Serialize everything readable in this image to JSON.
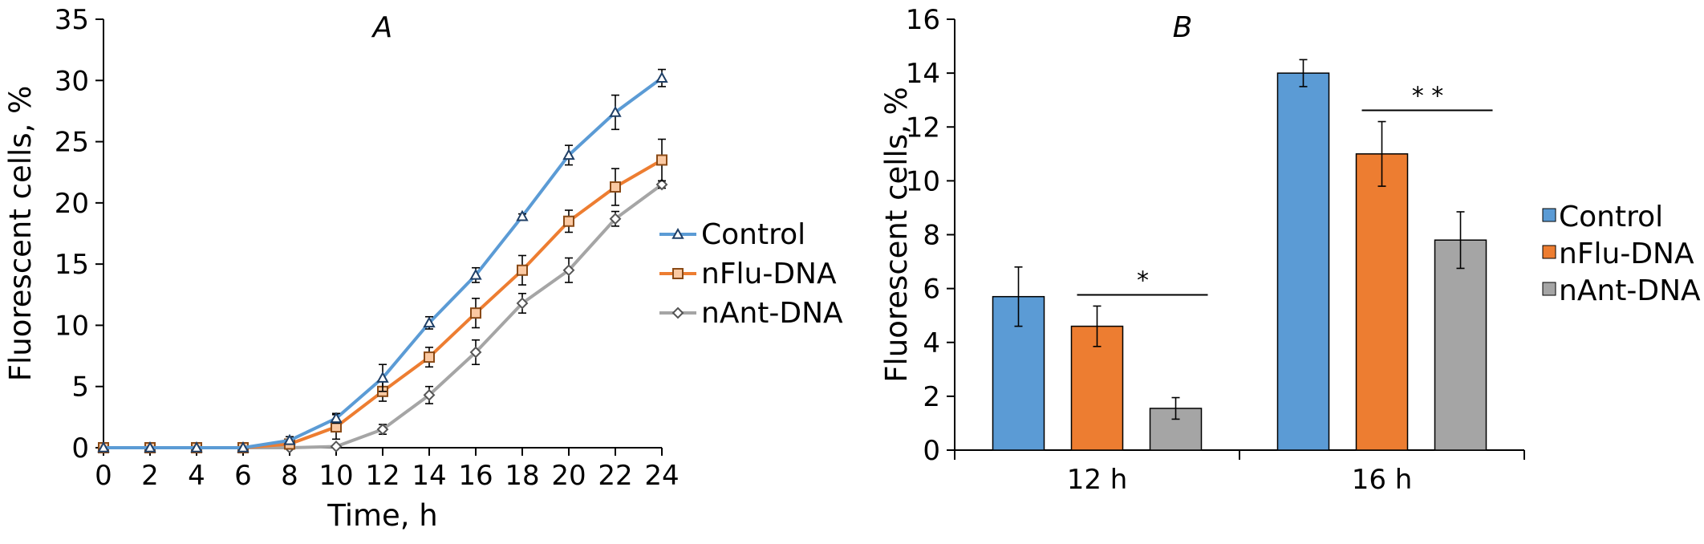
{
  "colors": {
    "control": "#5b9bd5",
    "nflu": "#ed7d31",
    "nant": "#a5a5a5",
    "axis": "#000000"
  },
  "chart_data": [
    {
      "type": "line",
      "panel_label": "A",
      "xlabel": "Time, h",
      "ylabel": "Fluorescent cells, %",
      "xlim": [
        0,
        24
      ],
      "ylim": [
        0,
        35
      ],
      "x_ticks": [
        "0",
        "2",
        "4",
        "6",
        "8",
        "10",
        "12",
        "14",
        "16",
        "18",
        "20",
        "22",
        "24"
      ],
      "y_ticks": [
        "0",
        "5",
        "10",
        "15",
        "20",
        "25",
        "30",
        "35"
      ],
      "x": [
        0,
        2,
        4,
        6,
        8,
        10,
        12,
        14,
        16,
        18,
        20,
        22,
        24
      ],
      "series": [
        {
          "name": "Control",
          "marker": "triangle",
          "values": [
            0,
            0,
            0,
            0,
            0.6,
            2.4,
            5.7,
            10.2,
            14.1,
            18.9,
            23.9,
            27.4,
            30.2
          ],
          "errors": [
            0,
            0,
            0,
            0,
            0.3,
            0.4,
            1.1,
            0.5,
            0.6,
            0.2,
            0.8,
            1.4,
            0.7
          ]
        },
        {
          "name": "nFlu-DNA",
          "marker": "square",
          "values": [
            0,
            0,
            0,
            0,
            0.3,
            1.7,
            4.6,
            7.4,
            11.0,
            14.5,
            18.5,
            21.3,
            23.5
          ],
          "errors": [
            0,
            0,
            0,
            0,
            0.4,
            1.0,
            0.8,
            0.8,
            1.2,
            1.2,
            0.9,
            1.5,
            1.7
          ]
        },
        {
          "name": "nAnt-DNA",
          "marker": "diamond",
          "values": [
            0,
            0,
            0,
            0,
            0,
            0.1,
            1.5,
            4.3,
            7.8,
            11.8,
            14.5,
            18.7,
            21.5
          ],
          "errors": [
            0,
            0,
            0,
            0,
            0,
            0.1,
            0.4,
            0.7,
            1.0,
            0.8,
            1.0,
            0.6,
            0.3
          ]
        }
      ],
      "legend": "right"
    },
    {
      "type": "bar",
      "panel_label": "B",
      "ylabel": "Fluorescent cells, %",
      "ylim": [
        0,
        16
      ],
      "y_ticks": [
        "0",
        "2",
        "4",
        "6",
        "8",
        "10",
        "12",
        "14",
        "16"
      ],
      "categories": [
        "12 h",
        "16 h"
      ],
      "series": [
        {
          "name": "Control",
          "values": [
            5.7,
            14.0
          ],
          "errors": [
            1.1,
            0.5
          ]
        },
        {
          "name": "nFlu-DNA",
          "values": [
            4.6,
            11.0
          ],
          "errors": [
            0.75,
            1.2
          ]
        },
        {
          "name": "nAnt-DNA",
          "values": [
            1.55,
            7.8
          ],
          "errors": [
            0.4,
            1.05
          ]
        }
      ],
      "significance": [
        "*",
        "* *"
      ],
      "legend": "right"
    }
  ]
}
